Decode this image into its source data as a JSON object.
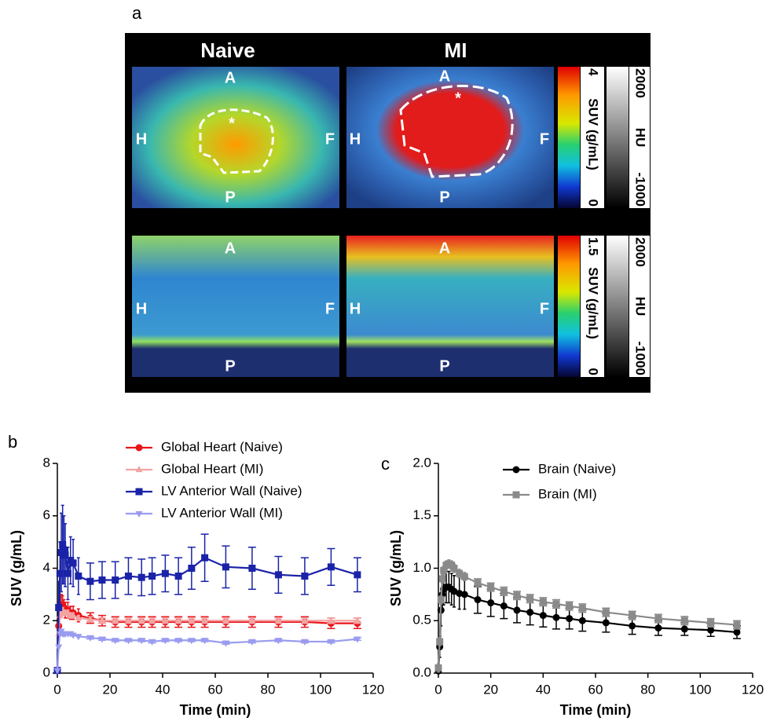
{
  "panel_a": {
    "label": "a",
    "columns": [
      "Naive",
      "MI"
    ],
    "orientation": {
      "anterior": "A",
      "posterior": "P",
      "head": "H",
      "feet": "F"
    },
    "marker": "*",
    "colorbars": [
      {
        "suv_max": "4",
        "suv_label": "SUV (g/mL)",
        "suv_min": "0",
        "hu_max": "2000",
        "hu_label": "HU",
        "hu_min": "-1000"
      },
      {
        "suv_max": "1.5",
        "suv_label": "SUV (g/mL)",
        "suv_min": "0",
        "hu_max": "2000",
        "hu_label": "HU",
        "hu_min": "-1000"
      }
    ]
  },
  "chart_data": [
    {
      "type": "line",
      "panel_label": "b",
      "ylabel": "SUV (g/mL)",
      "xlabel": "Time (min)",
      "xlim": [
        0,
        120
      ],
      "xticks": [
        0,
        20,
        40,
        60,
        80,
        100,
        120
      ],
      "ylim": [
        0,
        8
      ],
      "yticks": [
        0,
        2,
        4,
        6,
        8
      ],
      "x": [
        0,
        0.5,
        1,
        1.5,
        2,
        2.5,
        3,
        4,
        5,
        6,
        8,
        12.5,
        17,
        22,
        27,
        32,
        36,
        41,
        46,
        51,
        56,
        64,
        74,
        84,
        94,
        104,
        114
      ],
      "series": [
        {
          "name": "Global Heart (Naive)",
          "color": "#e8141b",
          "marker": "circle",
          "values": [
            0.1,
            1.8,
            2.5,
            2.6,
            2.6,
            2.5,
            2.4,
            2.4,
            2.3,
            2.3,
            2.2,
            2.1,
            2.0,
            1.95,
            1.95,
            1.95,
            1.95,
            1.95,
            1.95,
            1.95,
            1.95,
            1.95,
            1.95,
            1.95,
            1.95,
            1.9,
            1.9
          ],
          "errors": [
            0.05,
            0.3,
            0.4,
            0.4,
            0.35,
            0.3,
            0.3,
            0.3,
            0.25,
            0.25,
            0.25,
            0.2,
            0.2,
            0.2,
            0.2,
            0.2,
            0.2,
            0.2,
            0.2,
            0.2,
            0.2,
            0.2,
            0.2,
            0.2,
            0.2,
            0.2,
            0.2
          ]
        },
        {
          "name": "Global Heart (MI)",
          "color": "#f4a3a3",
          "marker": "triangle",
          "values": [
            0.1,
            1.5,
            2.2,
            2.4,
            2.4,
            2.3,
            2.3,
            2.3,
            2.2,
            2.2,
            2.1,
            2.05,
            2.0,
            2.0,
            2.0,
            2.0,
            2.0,
            2.0,
            2.0,
            2.0,
            2.0,
            2.0,
            2.0,
            2.0,
            2.0,
            2.0,
            2.0
          ],
          "errors": [
            0.1,
            0.1,
            0.1,
            0.1,
            0.1,
            0.1,
            0.1,
            0.1,
            0.1,
            0.1,
            0.1,
            0.1,
            0.1,
            0.1,
            0.1,
            0.1,
            0.1,
            0.1,
            0.1,
            0.1,
            0.1,
            0.1,
            0.1,
            0.1,
            0.1,
            0.1,
            0.1
          ]
        },
        {
          "name": "LV Anterior Wall (Naive)",
          "color": "#1a23a8",
          "marker": "square",
          "values": [
            0.1,
            2.5,
            3.8,
            4.6,
            4.9,
            4.7,
            4.5,
            3.8,
            4.3,
            4.2,
            3.7,
            3.5,
            3.55,
            3.55,
            3.7,
            3.65,
            3.7,
            3.8,
            3.7,
            4.0,
            4.4,
            4.05,
            4.0,
            3.75,
            3.7,
            4.05,
            3.75
          ],
          "errors": [
            0.1,
            1.0,
            1.2,
            1.5,
            1.5,
            1.3,
            1.2,
            1.0,
            0.9,
            0.9,
            0.7,
            0.7,
            0.7,
            0.7,
            0.7,
            0.7,
            0.7,
            0.7,
            0.7,
            0.8,
            0.9,
            0.8,
            0.8,
            0.7,
            0.7,
            0.7,
            0.65
          ]
        },
        {
          "name": "LV Anterior Wall (MI)",
          "color": "#9a9cf0",
          "marker": "triangle-down",
          "values": [
            0.1,
            1.0,
            1.5,
            1.6,
            1.5,
            1.5,
            1.5,
            1.5,
            1.5,
            1.45,
            1.4,
            1.35,
            1.3,
            1.25,
            1.25,
            1.25,
            1.2,
            1.25,
            1.25,
            1.25,
            1.25,
            1.15,
            1.2,
            1.25,
            1.2,
            1.2,
            1.3
          ],
          "errors": [
            0.05,
            0.05,
            0.05,
            0.05,
            0.05,
            0.05,
            0.05,
            0.05,
            0.05,
            0.05,
            0.05,
            0.05,
            0.05,
            0.05,
            0.05,
            0.05,
            0.05,
            0.05,
            0.05,
            0.05,
            0.05,
            0.05,
            0.05,
            0.05,
            0.05,
            0.05,
            0.05
          ]
        }
      ]
    },
    {
      "type": "line",
      "panel_label": "c",
      "ylabel": "SUV (g/mL)",
      "xlabel": "Time (min)",
      "xlim": [
        0,
        120
      ],
      "xticks": [
        0,
        20,
        40,
        60,
        80,
        100,
        120
      ],
      "ylim": [
        0,
        2
      ],
      "yticks": [
        {
          "value": 0,
          "label": "0.0"
        },
        0.5,
        {
          "value": 1,
          "label": "1.0"
        },
        1.5,
        {
          "value": 2,
          "label": "2.0"
        }
      ],
      "x": [
        0,
        0.5,
        1,
        1.5,
        2,
        3,
        4,
        5,
        6,
        8,
        10,
        15,
        20,
        25,
        30,
        35,
        40,
        45,
        50,
        55,
        64,
        74,
        84,
        94,
        104,
        114
      ],
      "series": [
        {
          "name": "Brain (Naive)",
          "color": "#000000",
          "marker": "circle",
          "values": [
            0.02,
            0.25,
            0.6,
            0.75,
            0.8,
            0.82,
            0.82,
            0.8,
            0.78,
            0.76,
            0.75,
            0.7,
            0.67,
            0.64,
            0.6,
            0.58,
            0.55,
            0.53,
            0.52,
            0.5,
            0.48,
            0.45,
            0.43,
            0.42,
            0.41,
            0.39
          ],
          "errors": [
            0.02,
            0.1,
            0.15,
            0.15,
            0.15,
            0.15,
            0.15,
            0.15,
            0.15,
            0.15,
            0.14,
            0.13,
            0.13,
            0.12,
            0.12,
            0.12,
            0.11,
            0.11,
            0.1,
            0.1,
            0.09,
            0.08,
            0.07,
            0.06,
            0.06,
            0.06
          ]
        },
        {
          "name": "Brain (MI)",
          "color": "#8a8a8a",
          "marker": "square",
          "values": [
            0.05,
            0.3,
            0.7,
            0.9,
            0.98,
            1.03,
            1.04,
            1.03,
            1.0,
            0.95,
            0.92,
            0.86,
            0.82,
            0.78,
            0.74,
            0.71,
            0.68,
            0.66,
            0.64,
            0.62,
            0.58,
            0.55,
            0.52,
            0.5,
            0.48,
            0.46
          ],
          "errors": [
            0.04,
            0.04,
            0.04,
            0.04,
            0.04,
            0.04,
            0.04,
            0.04,
            0.04,
            0.04,
            0.04,
            0.04,
            0.04,
            0.04,
            0.04,
            0.04,
            0.04,
            0.04,
            0.04,
            0.04,
            0.04,
            0.04,
            0.04,
            0.04,
            0.04,
            0.04
          ]
        }
      ]
    }
  ]
}
